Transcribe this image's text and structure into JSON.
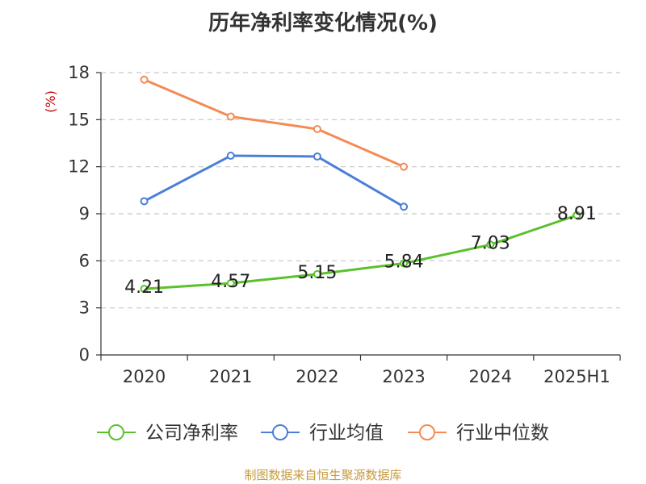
{
  "chart_data": {
    "type": "line",
    "title": "历年净利率变化情况(%)",
    "ylabel": "(%)",
    "xlabel": "",
    "categories": [
      "2020",
      "2021",
      "2022",
      "2023",
      "2024",
      "2025H1"
    ],
    "ylim": [
      0,
      18
    ],
    "yticks": [
      0,
      3,
      6,
      9,
      12,
      15,
      18
    ],
    "grid": true,
    "legend_position": "bottom",
    "series": [
      {
        "name": "公司净利率",
        "color": "#5ac12d",
        "show_labels": true,
        "values": [
          4.21,
          4.57,
          5.15,
          5.84,
          7.03,
          8.91
        ],
        "labels": [
          "4.21",
          "4.57",
          "5.15",
          "5.84",
          "7.03",
          "8.91"
        ]
      },
      {
        "name": "行业均值",
        "color": "#4a7fd8",
        "show_labels": false,
        "values": [
          9.8,
          12.7,
          12.65,
          9.45,
          null,
          null
        ]
      },
      {
        "name": "行业中位数",
        "color": "#f38b57",
        "show_labels": false,
        "values": [
          17.55,
          15.2,
          14.4,
          12.0,
          null,
          null
        ]
      }
    ]
  },
  "source_text": "制图数据来自恒生聚源数据库",
  "colors": {
    "grid": "#c8c8c8",
    "axis": "#333333",
    "ylabel": "#cc0000",
    "source": "#c89b3c"
  }
}
